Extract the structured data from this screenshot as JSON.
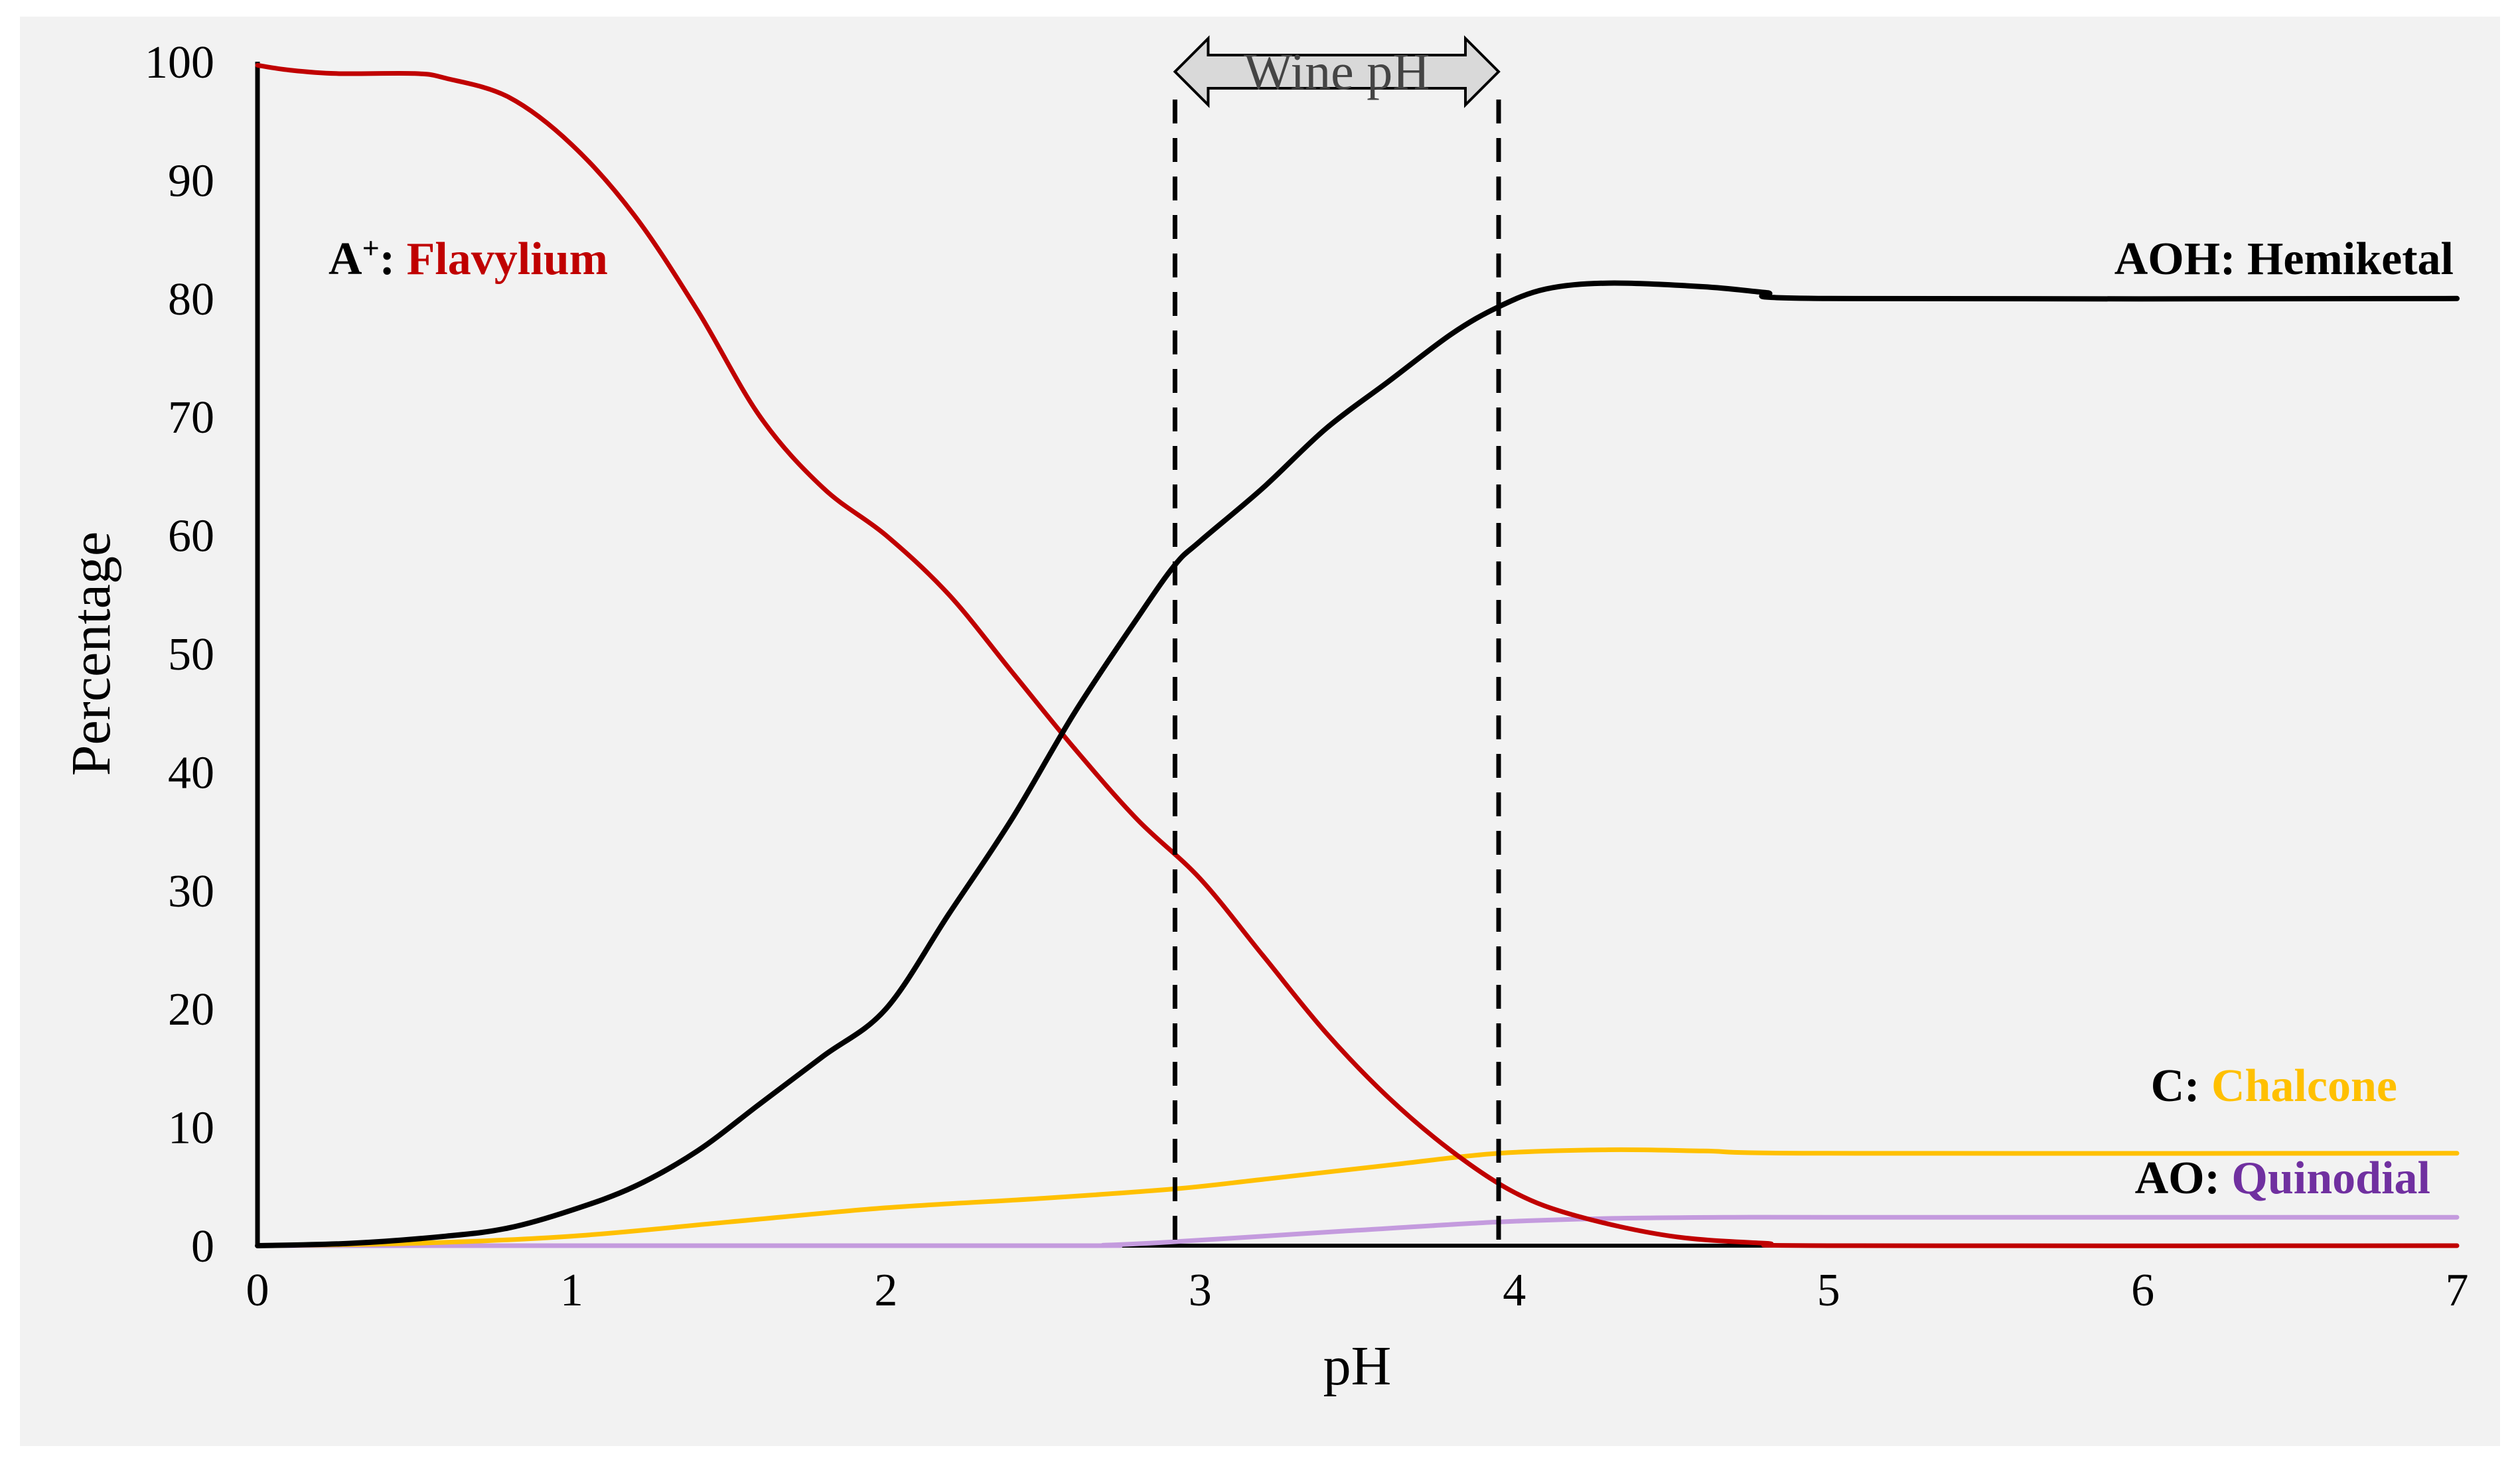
{
  "chart_data": {
    "type": "line",
    "xlabel": "pH",
    "ylabel": "Percentage",
    "xlim": [
      0,
      7
    ],
    "ylim": [
      0,
      100
    ],
    "x_ticks": [
      "0",
      "1",
      "2",
      "3",
      "4",
      "5",
      "6",
      "7"
    ],
    "y_ticks": [
      "0",
      "10",
      "20",
      "30",
      "40",
      "50",
      "60",
      "70",
      "80",
      "90",
      "100"
    ],
    "grid": false,
    "legend": "none",
    "annotation": {
      "label": "Wine pH",
      "x_start": 2.92,
      "x_end": 3.95
    },
    "series": [
      {
        "name": "Flavylium",
        "prefix": "A⁺: ",
        "color": "#c00000",
        "points": [
          [
            0,
            99.7
          ],
          [
            0.1,
            99.3
          ],
          [
            0.25,
            99.0
          ],
          [
            0.5,
            99.0
          ],
          [
            0.6,
            98.6
          ],
          [
            0.8,
            97
          ],
          [
            1.0,
            93
          ],
          [
            1.2,
            87
          ],
          [
            1.4,
            79
          ],
          [
            1.6,
            70
          ],
          [
            1.8,
            64
          ],
          [
            2.0,
            60
          ],
          [
            2.2,
            55
          ],
          [
            2.4,
            48.5
          ],
          [
            2.6,
            42
          ],
          [
            2.8,
            36
          ],
          [
            3.0,
            31
          ],
          [
            3.2,
            24.5
          ],
          [
            3.4,
            18
          ],
          [
            3.6,
            12.5
          ],
          [
            3.8,
            8
          ],
          [
            4.0,
            4.5
          ],
          [
            4.2,
            2.5
          ],
          [
            4.5,
            0.8
          ],
          [
            4.8,
            0.2
          ],
          [
            5.0,
            0
          ],
          [
            7.0,
            0
          ]
        ]
      },
      {
        "name": "Hemiketal",
        "prefix": "AOH: ",
        "color": "#000000",
        "points": [
          [
            0,
            0
          ],
          [
            0.3,
            0.2
          ],
          [
            0.6,
            0.8
          ],
          [
            0.8,
            1.5
          ],
          [
            1.0,
            3.0
          ],
          [
            1.2,
            5
          ],
          [
            1.4,
            8
          ],
          [
            1.6,
            12
          ],
          [
            1.8,
            16
          ],
          [
            2.0,
            20
          ],
          [
            2.2,
            28
          ],
          [
            2.4,
            36
          ],
          [
            2.6,
            45
          ],
          [
            2.8,
            53
          ],
          [
            2.92,
            57.5
          ],
          [
            3.0,
            59.5
          ],
          [
            3.2,
            64
          ],
          [
            3.4,
            69
          ],
          [
            3.6,
            73
          ],
          [
            3.8,
            77
          ],
          [
            3.95,
            79.3
          ],
          [
            4.1,
            80.8
          ],
          [
            4.3,
            81.3
          ],
          [
            4.6,
            81
          ],
          [
            4.8,
            80.5
          ],
          [
            5.0,
            80
          ],
          [
            7.0,
            80
          ]
        ]
      },
      {
        "name": "Chalcone",
        "prefix": "C: ",
        "color": "#ffc000",
        "points": [
          [
            0,
            0
          ],
          [
            0.5,
            0.2
          ],
          [
            1.0,
            0.8
          ],
          [
            1.5,
            2
          ],
          [
            2.0,
            3.2
          ],
          [
            2.5,
            4
          ],
          [
            2.92,
            4.8
          ],
          [
            3.2,
            5.6
          ],
          [
            3.6,
            6.8
          ],
          [
            3.95,
            7.8
          ],
          [
            4.3,
            8.1
          ],
          [
            4.6,
            8.0
          ],
          [
            5.0,
            7.8
          ],
          [
            7.0,
            7.8
          ]
        ]
      },
      {
        "name": "Quinodial",
        "prefix": "AO: ",
        "color": "#c49bde",
        "label_color": "#7030a0",
        "points": [
          [
            0,
            0
          ],
          [
            2.5,
            0
          ],
          [
            2.7,
            0.05
          ],
          [
            2.9,
            0.3
          ],
          [
            3.2,
            0.8
          ],
          [
            3.5,
            1.3
          ],
          [
            3.95,
            2.0
          ],
          [
            4.3,
            2.3
          ],
          [
            4.7,
            2.4
          ],
          [
            5.0,
            2.4
          ],
          [
            7.0,
            2.4
          ]
        ]
      }
    ]
  }
}
